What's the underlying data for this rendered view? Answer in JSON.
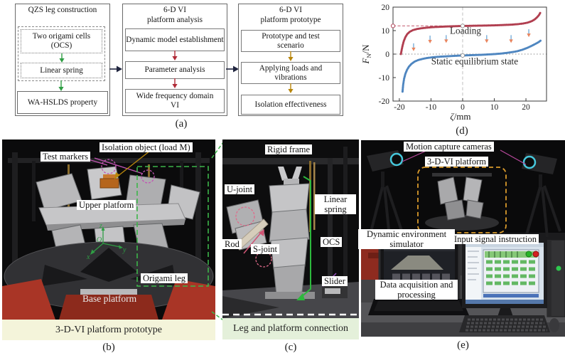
{
  "colors": {
    "arrow_green": "#2f9e44",
    "arrow_red": "#b02a37",
    "arrow_gold": "#b8860b",
    "arrow_link": "#20253f",
    "zoom_green": "#3cb54a",
    "chart_red": "#b13f50",
    "chart_blue": "#4f86c0",
    "bar_b_bg": "#f4f4da",
    "bar_c_bg": "#e4f0da",
    "marker_magenta": "#c355b4",
    "dashed_orange": "#d99a2b"
  },
  "captions": {
    "a": "(a)",
    "b": "(b)",
    "c": "(c)",
    "d": "(d)",
    "e": "(e)"
  },
  "flowchart": {
    "col1": {
      "title": "QZS leg construction",
      "box_ocs": "Two origami cells (OCS)",
      "box_spring": "Linear spring",
      "box_result": "WA-HSLDS property"
    },
    "col2": {
      "title_l1": "6-D VI",
      "title_l2": "platform analysis",
      "box1": "Dynamic model establishment",
      "box2": "Parameter analysis",
      "box3": "Wide frequency domain VI"
    },
    "col3": {
      "title_l1": "6-D VI",
      "title_l2": "platform prototype",
      "box1": "Prototype and test scenario",
      "box2": "Applying loads and vibrations",
      "box3": "Isolation effectiveness"
    }
  },
  "chart": {
    "chart_data": {
      "type": "line",
      "title": "",
      "xlabel": "ζ/mm",
      "ylabel": "F_N/N",
      "xlim": [
        -22,
        26.5
      ],
      "ylim": [
        -20,
        20
      ],
      "xticks": [
        -20,
        -10,
        0,
        10,
        20
      ],
      "yticks": [
        -20,
        -10,
        0,
        10,
        20
      ],
      "grid": false,
      "series": [
        {
          "name": "Loading",
          "color": "#b13f50",
          "x": [
            -19.5,
            -19.3,
            -19,
            -18.6,
            -18.1,
            -17.5,
            -16.7,
            -15.7,
            -14.4,
            -13,
            -11,
            -9,
            -7,
            -5,
            -3,
            -1,
            1,
            4,
            7,
            10,
            13,
            15.5,
            17.5,
            19,
            20.5,
            21.8,
            22.8,
            23.6,
            24.2,
            24.6
          ],
          "y": [
            0,
            1.5,
            3.5,
            5.5,
            7.2,
            8.5,
            9.5,
            10.2,
            10.7,
            11,
            11.3,
            11.5,
            11.65,
            11.75,
            11.85,
            11.95,
            12,
            12.1,
            12.15,
            12.25,
            12.4,
            12.55,
            12.75,
            13,
            13.4,
            14,
            14.8,
            15.8,
            16.8,
            17.8
          ]
        },
        {
          "name": "Static equilibrium state",
          "color": "#4f86c0",
          "x": [
            -19,
            -18.8,
            -18.5,
            -18.1,
            -17.6,
            -17,
            -16.2,
            -15.2,
            -14,
            -12.5,
            -11,
            -9,
            -7,
            -5,
            -3,
            -1,
            0,
            2,
            4,
            6,
            8,
            10,
            12,
            14,
            16,
            17.5,
            19,
            20.5,
            21.8,
            22.8,
            23.6,
            24.2,
            24.6
          ],
          "y": [
            -16,
            -13,
            -10.5,
            -8.4,
            -6.8,
            -5.4,
            -4.2,
            -3.2,
            -2.5,
            -2,
            -1.6,
            -1.3,
            -1.1,
            -0.95,
            -0.8,
            -0.65,
            -0.6,
            -0.5,
            -0.4,
            -0.3,
            -0.15,
            0,
            0.2,
            0.5,
            0.9,
            1.3,
            1.9,
            2.7,
            3.5,
            4.2,
            4.8,
            5.3,
            5.7
          ]
        }
      ],
      "loading_level_line": 12,
      "equilibrium_level_line": 0,
      "vertical_reference": 0,
      "axis_marker": {
        "y": 12
      },
      "open_markers": [
        {
          "x": 0,
          "y": 12
        },
        {
          "x": 0,
          "y": -0.6
        }
      ],
      "load_arrows": [
        {
          "x": -15.5,
          "y": 1.4
        },
        {
          "x": -10.3,
          "y": 4.7
        },
        {
          "x": -5.2,
          "y": 4.9
        },
        {
          "x": 7.6,
          "y": 4.9
        },
        {
          "x": 15.3,
          "y": 4.9
        },
        {
          "x": 20.9,
          "y": 7.4
        }
      ],
      "annotations": [
        {
          "text": "Loading",
          "x": 0.9,
          "y": 8.6
        },
        {
          "text": "Static equilibrium state",
          "x": 3.8,
          "y": -4.4
        }
      ],
      "legend_position": "none"
    }
  },
  "panel_b": {
    "labels": {
      "test_markers": "Test markers",
      "isolation_object": "Isolation object (load M)",
      "upper_platform": "Upper platform",
      "origami_leg": "Origami leg",
      "base_platform": "Base platform"
    },
    "axes": {
      "z": "z",
      "o": "O",
      "y": "y",
      "x": "x"
    },
    "caption_bar": "3-D-VI platform prototype"
  },
  "panel_c": {
    "labels": {
      "rigid_frame": "Rigid frame",
      "u_joint": "U-joint",
      "linear_spring": "Linear spring",
      "rod": "Rod",
      "s_joint": "S-joint",
      "ocs": "OCS",
      "slider": "Slider"
    },
    "caption_bar": "Leg and platform connection"
  },
  "panel_e": {
    "labels": {
      "motion_capture": "Motion capture cameras",
      "platform": "3-D-VI platform",
      "dynamic_env": "Dynamic environment simulator",
      "input_signal": "Input signal instruction",
      "data_acq": "Data acquisition and processing"
    }
  }
}
